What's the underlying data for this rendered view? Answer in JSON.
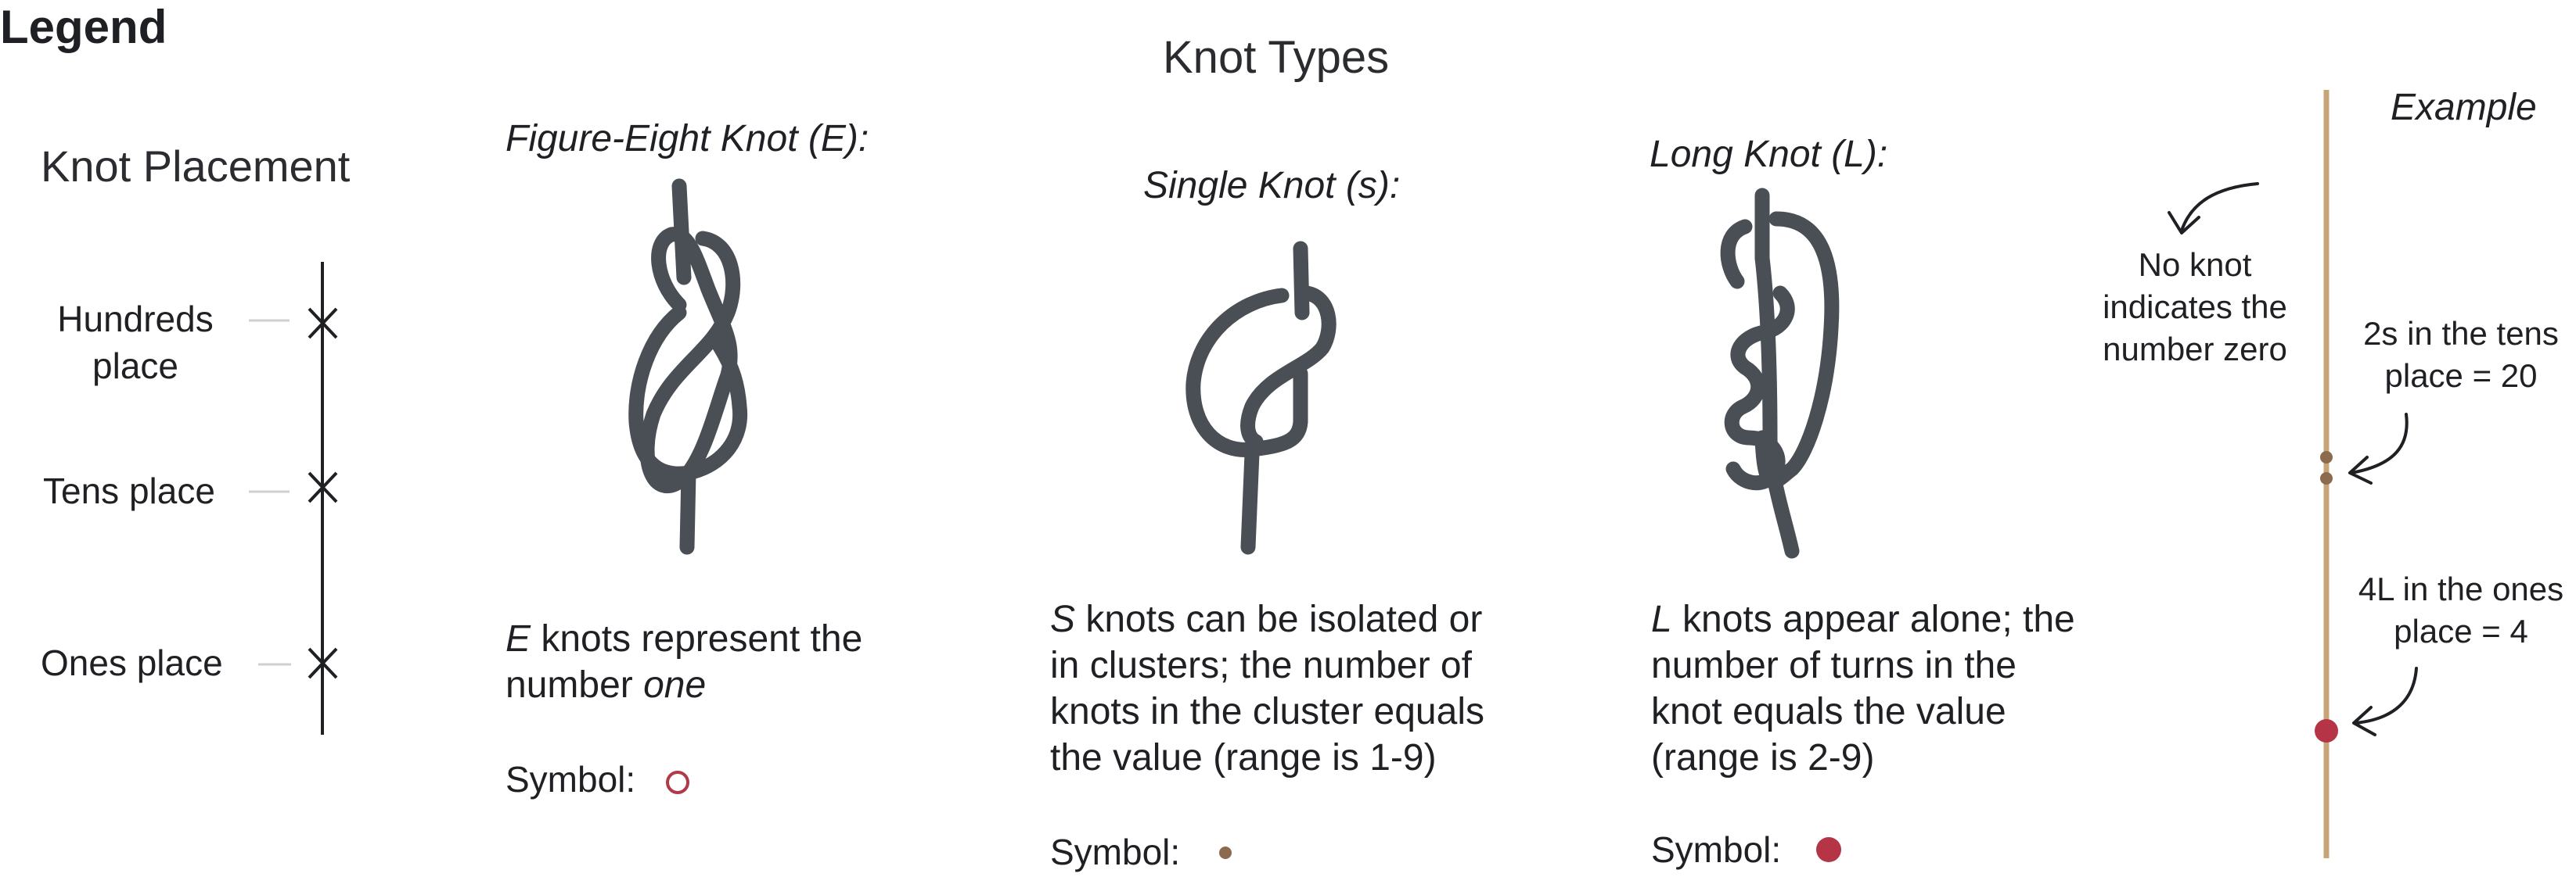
{
  "legend_title": "Legend",
  "knot_types_title": "Knot Types",
  "placement": {
    "title": "Knot Placement",
    "hundreds": [
      "Hundreds",
      "place"
    ],
    "tens": "Tens place",
    "ones": "Ones place"
  },
  "knots": {
    "figure_eight": {
      "name": "Figure-Eight Knot (E):",
      "desc_lead": "E",
      "desc_mid": " knots represent the number ",
      "desc_tail": "one",
      "symbol_label": "Symbol:"
    },
    "single": {
      "name": "Single Knot (s):",
      "desc_lead": "S",
      "desc_rest": " knots can be isolated or in clusters; the number of knots in the cluster equals the value (range is 1-9)",
      "symbol_label": "Symbol:"
    },
    "long": {
      "name": "Long Knot (L):",
      "desc_lead": "L",
      "desc_rest": " knots appear alone; the number of turns in the knot equals the value (range is 2-9)",
      "symbol_label": "Symbol:"
    }
  },
  "example": {
    "title": "Example",
    "no_knot": "No knot indicates the number zero",
    "tens_note": "2s in the tens place = 20",
    "ones_note": "4L in the ones place = 4"
  },
  "colors": {
    "knot": "#4a4f56",
    "cord": "#c8a578",
    "figure_eight_symbol": "#b03a48",
    "single_symbol": "#8b6a4e",
    "long_symbol": "#b53445",
    "text": "#1f2024"
  }
}
